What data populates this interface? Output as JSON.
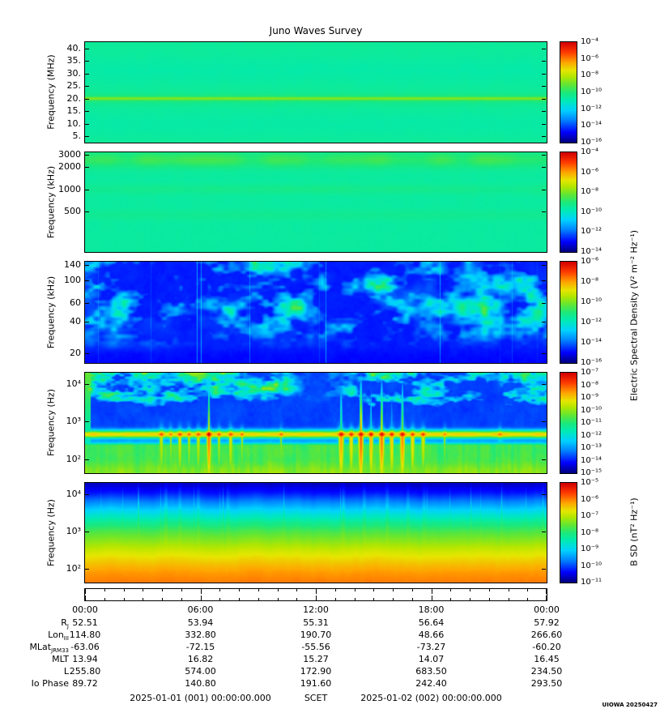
{
  "title": "Juno Waves Survey",
  "watermark": "UIOWA 20250427",
  "labels": {
    "electric_axis": "Electric Spectral Density (V² m⁻² Hz⁻¹)",
    "magnetic_axis": "B SD (nT² Hz⁻¹)"
  },
  "time_axis": {
    "ticks": [
      "00:00",
      "06:00",
      "12:00",
      "18:00",
      "00:00"
    ],
    "start": "2025-01-01 (001) 00:00:00.000",
    "center": "SCET",
    "end": "2025-01-02 (002) 00:00:00.000"
  },
  "ephemeris": {
    "rows": [
      {
        "label": "R",
        "sub": "J",
        "values": [
          "52.51",
          "53.94",
          "55.31",
          "56.64",
          "57.92"
        ]
      },
      {
        "label": "Lon",
        "sub": "III",
        "values": [
          "114.80",
          "332.80",
          "190.70",
          "48.66",
          "266.60"
        ]
      },
      {
        "label": "MLat",
        "sub": "JRM33",
        "values": [
          "-63.06",
          "-72.15",
          "-55.56",
          "-73.27",
          "-60.20"
        ]
      },
      {
        "label": "MLT",
        "sub": "",
        "values": [
          "13.94",
          "16.82",
          "15.27",
          "14.07",
          "16.45"
        ]
      },
      {
        "label": "L",
        "sub": "",
        "values": [
          "255.80",
          "574.00",
          "172.90",
          "683.50",
          "234.50"
        ]
      },
      {
        "label": "Io Phase",
        "sub": "",
        "values": [
          "89.72",
          "140.80",
          "191.60",
          "242.40",
          "293.50"
        ]
      }
    ]
  },
  "colormap": [
    {
      "p": 0.0,
      "c": "#000080"
    },
    {
      "p": 0.1,
      "c": "#0000ff"
    },
    {
      "p": 0.22,
      "c": "#0082ff"
    },
    {
      "p": 0.32,
      "c": "#00d2ff"
    },
    {
      "p": 0.42,
      "c": "#00ebb4"
    },
    {
      "p": 0.5,
      "c": "#1ee878"
    },
    {
      "p": 0.58,
      "c": "#64e632"
    },
    {
      "p": 0.66,
      "c": "#b4e600"
    },
    {
      "p": 0.72,
      "c": "#e6e600"
    },
    {
      "p": 0.8,
      "c": "#ffa500"
    },
    {
      "p": 0.9,
      "c": "#ff3c00"
    },
    {
      "p": 1.0,
      "c": "#d20000"
    }
  ],
  "chart_data": [
    {
      "type": "heatmap",
      "id": "e_mhz",
      "ylabel": "Frequency (MHz)",
      "yscale": "linear",
      "yrange": [
        2.5,
        42.5
      ],
      "yticks": [
        {
          "v": 40,
          "label": "40."
        },
        {
          "v": 35,
          "label": "35."
        },
        {
          "v": 30,
          "label": "30."
        },
        {
          "v": 25,
          "label": "25."
        },
        {
          "v": 20,
          "label": "20."
        },
        {
          "v": 15,
          "label": "15."
        },
        {
          "v": 10,
          "label": "10."
        },
        {
          "v": 5,
          "label": "5."
        }
      ],
      "colorbar_ticks": [
        "10⁻⁴",
        "10⁻⁶",
        "10⁻⁸",
        "10⁻¹⁰",
        "10⁻¹²",
        "10⁻¹⁴",
        "10⁻¹⁶"
      ],
      "features": "uniform cyan-green background near 10⁻¹² with a narrow bright green band at ~20 MHz persisting across the full day"
    },
    {
      "type": "heatmap",
      "id": "e_khz_high",
      "ylabel": "Frequency (kHz)",
      "yscale": "log",
      "yrange": [
        140,
        3200
      ],
      "yticks": [
        {
          "v": 3000,
          "label": "3000"
        },
        {
          "v": 2000,
          "label": "2000"
        },
        {
          "v": 1000,
          "label": "1000"
        },
        {
          "v": 500,
          "label": "500"
        }
      ],
      "colorbar_ticks": [
        "10⁻⁴",
        "10⁻⁶",
        "10⁻⁸",
        "10⁻¹⁰",
        "10⁻¹²",
        "10⁻¹⁴"
      ],
      "features": "cyan background with diffuse green enhancement between ~2000-3000 kHz and faint bands near 1000 kHz and below"
    },
    {
      "type": "heatmap",
      "id": "e_khz_low",
      "ylabel": "Frequency (kHz)",
      "yscale": "log",
      "yrange": [
        16,
        150
      ],
      "yticks": [
        {
          "v": 140,
          "label": "140"
        },
        {
          "v": 100,
          "label": "100"
        },
        {
          "v": 60,
          "label": "60"
        },
        {
          "v": 40,
          "label": "40"
        },
        {
          "v": 20,
          "label": "20"
        }
      ],
      "colorbar_ticks": [
        "10⁻⁶",
        "10⁻⁸",
        "10⁻¹⁰",
        "10⁻¹²",
        "10⁻¹⁴",
        "10⁻¹⁶"
      ],
      "features": "blue background with patchy cyan emission and narrow bright vertical streaks, activity mostly above ~40 kHz"
    },
    {
      "type": "heatmap",
      "id": "e_hz",
      "ylabel": "Frequency (Hz)",
      "yscale": "log",
      "yrange": [
        43,
        20000
      ],
      "yticks": [
        {
          "v": 10000,
          "label": "10⁴"
        },
        {
          "v": 1000,
          "label": "10³"
        },
        {
          "v": 100,
          "label": "10²"
        }
      ],
      "colorbar_ticks": [
        "10⁻⁷",
        "10⁻⁸",
        "10⁻⁹",
        "10⁻¹⁰",
        "10⁻¹¹",
        "10⁻¹²",
        "10⁻¹³",
        "10⁻¹⁴",
        "10⁻¹⁵"
      ],
      "features": "blue above ~2 kHz with patchy green emission toward 10⁴ Hz (quiet gap near 12:00); intense yellow band near 500-700 Hz with red burst cores around 04:00-08:00 and 13:00-17:30; green continuum with red vertical streaks below"
    },
    {
      "type": "heatmap",
      "id": "b_hz",
      "ylabel": "Frequency (Hz)",
      "yscale": "log",
      "yrange": [
        43,
        20000
      ],
      "yticks": [
        {
          "v": 10000,
          "label": "10⁴"
        },
        {
          "v": 1000,
          "label": "10³"
        },
        {
          "v": 100,
          "label": "10²"
        }
      ],
      "colorbar_ticks": [
        "10⁻⁵",
        "10⁻⁶",
        "10⁻⁷",
        "10⁻⁸",
        "10⁻⁹",
        "10⁻¹⁰",
        "10⁻¹¹"
      ],
      "features": "smooth power-law gradient from dark blue at 10⁴ Hz through green near 10³ Hz to orange at the lowest frequencies, with faint vertical green striations"
    }
  ]
}
